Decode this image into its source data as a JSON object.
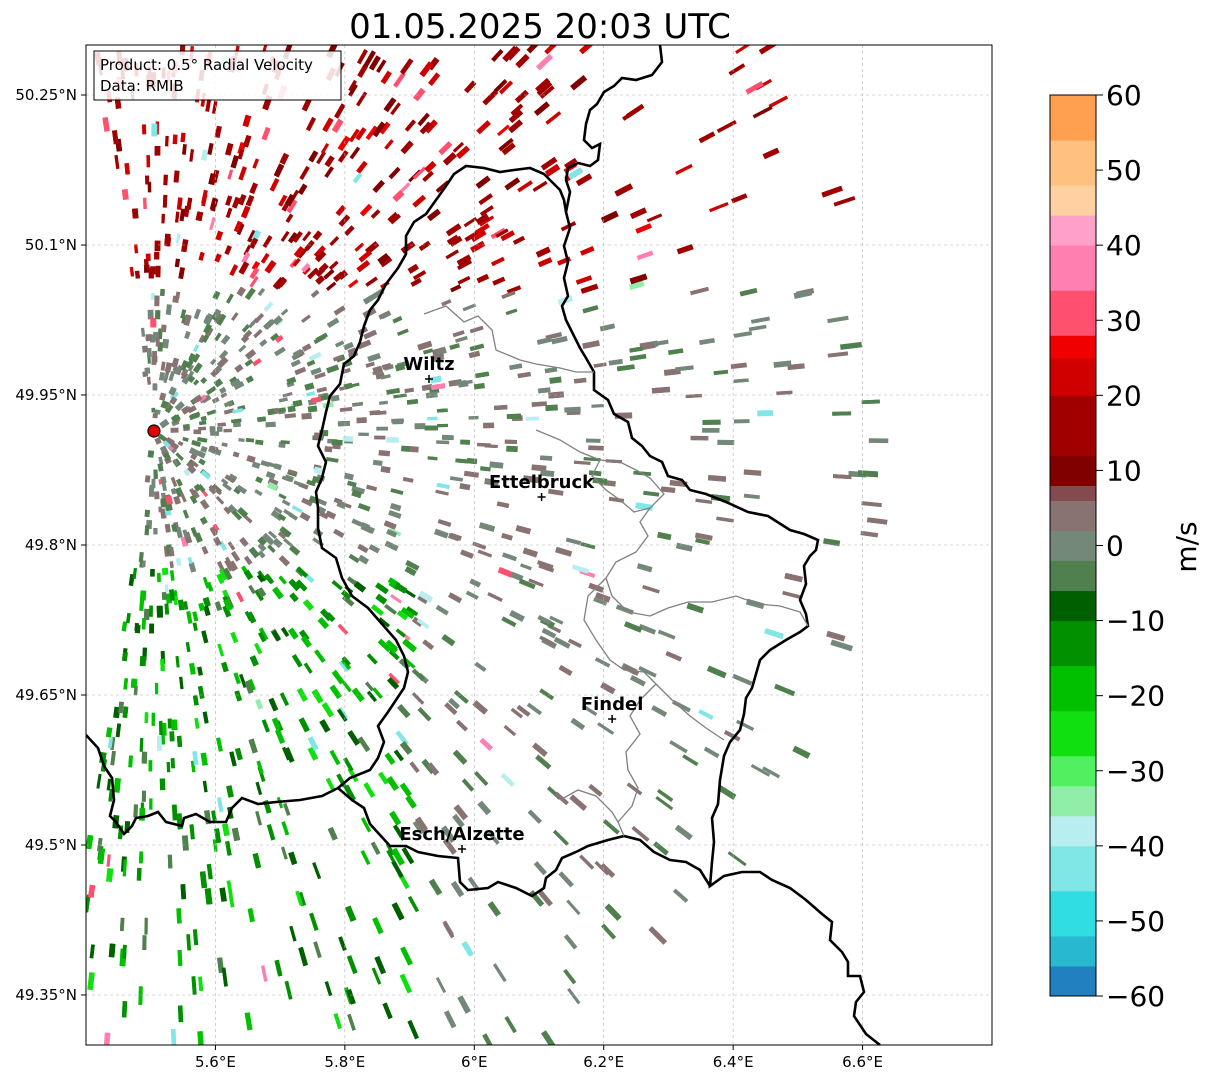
{
  "title": "01.05.2025 20:03 UTC",
  "info_box": {
    "product": "Product: 0.5° Radial Velocity",
    "data": "Data: RMIB"
  },
  "lon_ticks": [
    {
      "value": 5.6,
      "label": "5.6°E"
    },
    {
      "value": 5.8,
      "label": "5.8°E"
    },
    {
      "value": 6.0,
      "label": "6°E"
    },
    {
      "value": 6.2,
      "label": "6.2°E"
    },
    {
      "value": 6.4,
      "label": "6.4°E"
    },
    {
      "value": 6.6,
      "label": "6.6°E"
    }
  ],
  "lat_ticks": [
    {
      "value": 50.25,
      "label": "50.25°N"
    },
    {
      "value": 50.1,
      "label": "50.1°N"
    },
    {
      "value": 49.95,
      "label": "49.95°N"
    },
    {
      "value": 49.8,
      "label": "49.8°N"
    },
    {
      "value": 49.65,
      "label": "49.65°N"
    },
    {
      "value": 49.5,
      "label": "49.5°N"
    },
    {
      "value": 49.35,
      "label": "49.35°N"
    }
  ],
  "map_extent": {
    "lon_min": 5.4,
    "lon_max": 6.8,
    "lat_min": 49.3,
    "lat_max": 50.3
  },
  "cities": [
    {
      "name": "Wiltz",
      "lon": 5.93,
      "lat": 49.966
    },
    {
      "name": "Ettelbruck",
      "lon": 6.104,
      "lat": 49.848
    },
    {
      "name": "Findel",
      "lon": 6.213,
      "lat": 49.626
    },
    {
      "name": "Esch/Alzette",
      "lon": 5.981,
      "lat": 49.496
    }
  ],
  "radar_site": {
    "lon": 5.505,
    "lat": 49.914,
    "color": "#e00000"
  },
  "colorbar": {
    "label": "m/s",
    "min": -60,
    "max": 60,
    "ticks": [
      {
        "value": 60,
        "label": "60"
      },
      {
        "value": 50,
        "label": "50"
      },
      {
        "value": 40,
        "label": "40"
      },
      {
        "value": 30,
        "label": "30"
      },
      {
        "value": 20,
        "label": "20"
      },
      {
        "value": 10,
        "label": "10"
      },
      {
        "value": 0,
        "label": "0"
      },
      {
        "value": -10,
        "label": "−10"
      },
      {
        "value": -20,
        "label": "−20"
      },
      {
        "value": -30,
        "label": "−30"
      },
      {
        "value": -40,
        "label": "−40"
      },
      {
        "value": -50,
        "label": "−50"
      },
      {
        "value": -60,
        "label": "−60"
      }
    ],
    "stops": [
      {
        "from": -60,
        "to": -56,
        "color": "#2080c0"
      },
      {
        "from": -56,
        "to": -52,
        "color": "#28b8d0"
      },
      {
        "from": -52,
        "to": -46,
        "color": "#30dde0"
      },
      {
        "from": -46,
        "to": -40,
        "color": "#80e6e6"
      },
      {
        "from": -40,
        "to": -36,
        "color": "#b8eef0"
      },
      {
        "from": -36,
        "to": -32,
        "color": "#90eea8"
      },
      {
        "from": -32,
        "to": -28,
        "color": "#50f060"
      },
      {
        "from": -28,
        "to": -22,
        "color": "#10e010"
      },
      {
        "from": -22,
        "to": -16,
        "color": "#00c000"
      },
      {
        "from": -16,
        "to": -10,
        "color": "#009000"
      },
      {
        "from": -10,
        "to": -6,
        "color": "#006000"
      },
      {
        "from": -6,
        "to": -2,
        "color": "#50804e"
      },
      {
        "from": -2,
        "to": 2,
        "color": "#74887a"
      },
      {
        "from": 2,
        "to": 6,
        "color": "#887272"
      },
      {
        "from": 6,
        "to": 8,
        "color": "#844a50"
      },
      {
        "from": 8,
        "to": 12,
        "color": "#800000"
      },
      {
        "from": 12,
        "to": 20,
        "color": "#a00000"
      },
      {
        "from": 20,
        "to": 25,
        "color": "#d00000"
      },
      {
        "from": 25,
        "to": 28,
        "color": "#f00000"
      },
      {
        "from": 28,
        "to": 34,
        "color": "#ff5070"
      },
      {
        "from": 34,
        "to": 40,
        "color": "#ff80b0"
      },
      {
        "from": 40,
        "to": 44,
        "color": "#ffa0c8"
      },
      {
        "from": 44,
        "to": 48,
        "color": "#ffd0a0"
      },
      {
        "from": 48,
        "to": 54,
        "color": "#ffc080"
      },
      {
        "from": 54,
        "to": 60,
        "color": "#ffa050"
      }
    ]
  }
}
